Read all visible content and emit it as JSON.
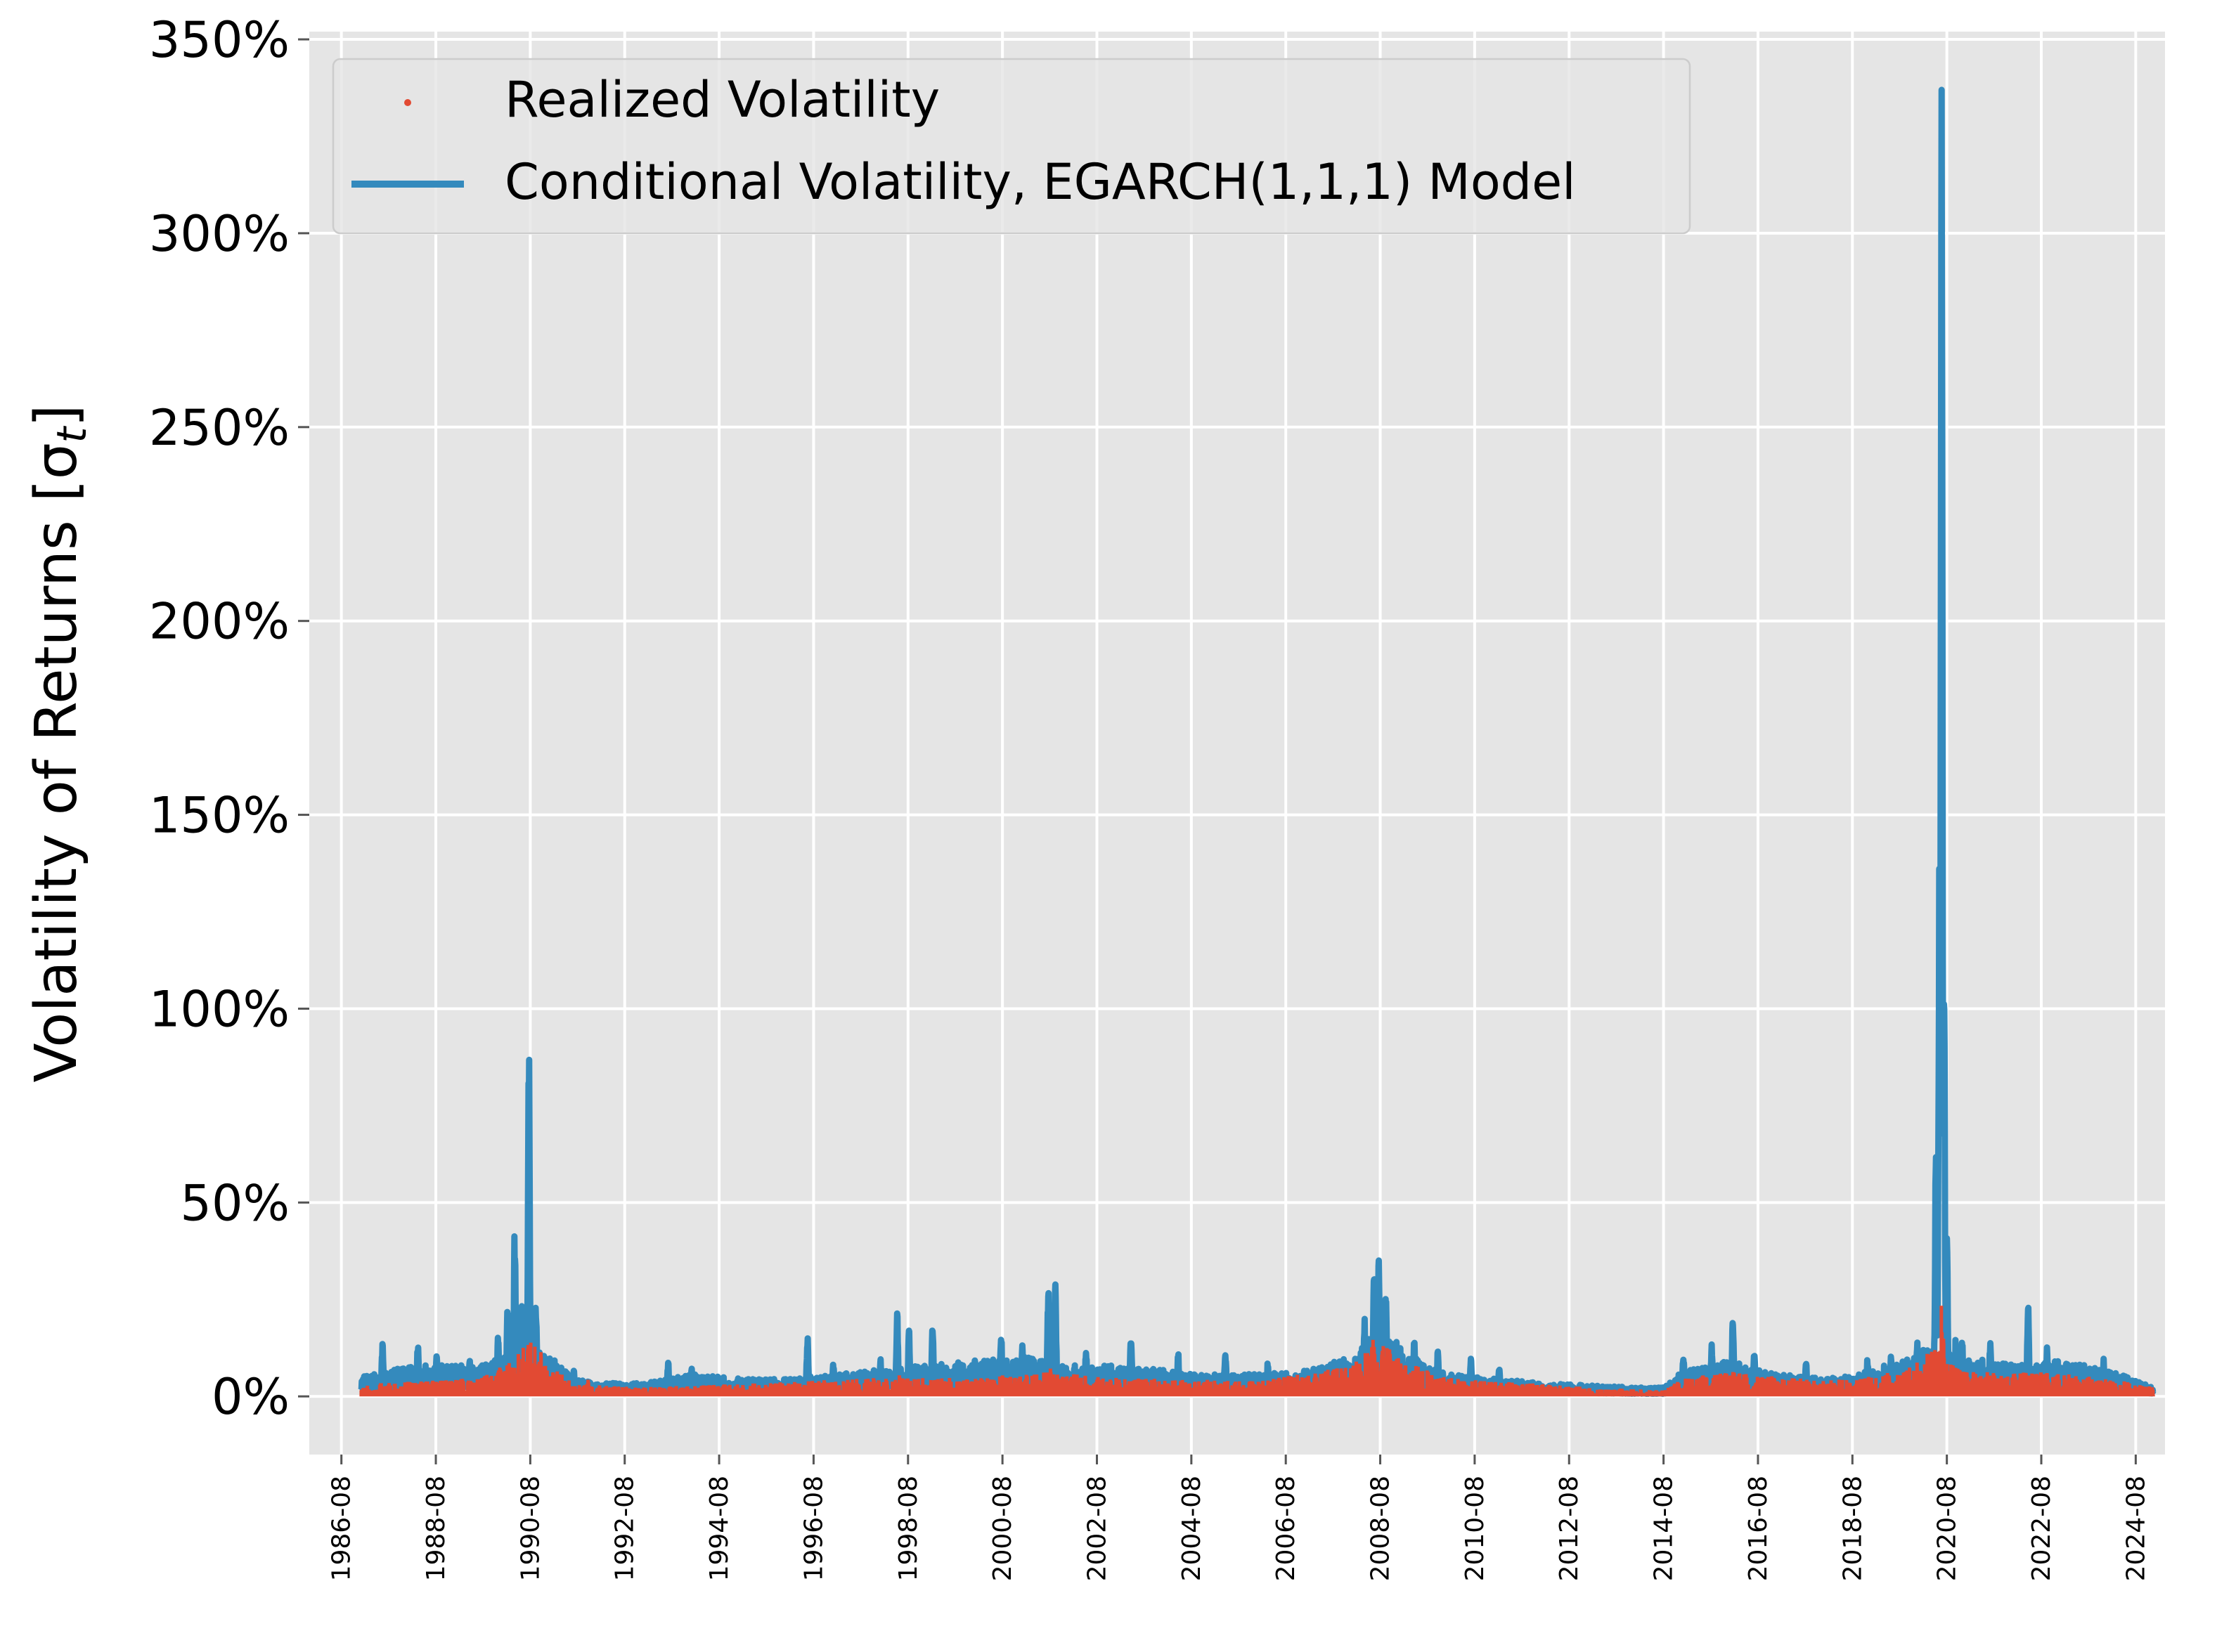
{
  "chart_data": {
    "type": "line",
    "title": "",
    "xlabel": "",
    "ylabel": "Volatility of Returns [σ",
    "ylabel_subscript": "t",
    "ylabel_close": "]",
    "ylim": [
      -15,
      352
    ],
    "xlim": [
      1985.9,
      2025.2
    ],
    "y_ticks": [
      0,
      50,
      100,
      150,
      200,
      250,
      300,
      350
    ],
    "y_tick_labels": [
      "0%",
      "50%",
      "100%",
      "150%",
      "200%",
      "250%",
      "300%",
      "350%"
    ],
    "x_ticks": [
      1986.58,
      1988.58,
      1990.58,
      1992.58,
      1994.58,
      1996.58,
      1998.58,
      2000.58,
      2002.58,
      2004.58,
      2006.58,
      2008.58,
      2010.58,
      2012.58,
      2014.58,
      2016.58,
      2018.58,
      2020.58,
      2022.58,
      2024.58
    ],
    "x_tick_labels": [
      "1986-08",
      "1988-08",
      "1990-08",
      "1992-08",
      "1994-08",
      "1996-08",
      "1998-08",
      "2000-08",
      "2002-08",
      "2004-08",
      "2006-08",
      "2008-08",
      "2010-08",
      "2012-08",
      "2014-08",
      "2016-08",
      "2018-08",
      "2020-08",
      "2022-08",
      "2024-08"
    ],
    "grid": true,
    "legend_position": "top-left",
    "legend": [
      "Realized Volatility",
      "Conditional Volatility, EGARCH(1,1,1) Model"
    ],
    "colors": {
      "background": "#e5e5e5",
      "grid": "#ffffff",
      "realized": "#e24a33",
      "conditional": "#348abd",
      "text": "#000000"
    },
    "series": [
      {
        "name": "Conditional Volatility, EGARCH(1,1,1) Model",
        "style": "line",
        "x_start": 1987.0,
        "x_end": 2024.95,
        "base_envelope": [
          [
            1987.0,
            5
          ],
          [
            1987.4,
            5
          ],
          [
            1988.0,
            7
          ],
          [
            1989.0,
            7
          ],
          [
            1989.5,
            7
          ],
          [
            1990.0,
            9
          ],
          [
            1990.5,
            14
          ],
          [
            1991.0,
            9
          ],
          [
            1991.5,
            4
          ],
          [
            1992.0,
            3
          ],
          [
            1993.0,
            3
          ],
          [
            1994.0,
            5
          ],
          [
            1995.0,
            4
          ],
          [
            1996.0,
            4
          ],
          [
            1997.0,
            5
          ],
          [
            1998.0,
            6
          ],
          [
            1999.0,
            7
          ],
          [
            2000.0,
            8
          ],
          [
            2001.0,
            9
          ],
          [
            2002.0,
            7
          ],
          [
            2003.0,
            7
          ],
          [
            2004.0,
            6
          ],
          [
            2005.0,
            5
          ],
          [
            2006.0,
            5
          ],
          [
            2007.0,
            6
          ],
          [
            2008.0,
            9
          ],
          [
            2008.6,
            16
          ],
          [
            2009.0,
            12
          ],
          [
            2009.5,
            7
          ],
          [
            2010.0,
            5
          ],
          [
            2011.0,
            4
          ],
          [
            2012.0,
            3
          ],
          [
            2013.0,
            2.5
          ],
          [
            2014.0,
            2
          ],
          [
            2014.6,
            2
          ],
          [
            2015.0,
            6
          ],
          [
            2016.0,
            8
          ],
          [
            2017.0,
            5
          ],
          [
            2018.0,
            4
          ],
          [
            2019.0,
            6
          ],
          [
            2020.0,
            10
          ],
          [
            2020.7,
            14
          ],
          [
            2021.0,
            9
          ],
          [
            2022.0,
            7
          ],
          [
            2023.0,
            8
          ],
          [
            2024.0,
            6
          ],
          [
            2024.95,
            2
          ]
        ],
        "spikes": [
          [
            1987.45,
            14
          ],
          [
            1988.2,
            15
          ],
          [
            1988.6,
            12
          ],
          [
            1989.3,
            10
          ],
          [
            1989.9,
            18
          ],
          [
            1990.1,
            24
          ],
          [
            1990.25,
            44
          ],
          [
            1990.4,
            30
          ],
          [
            1990.55,
            97
          ],
          [
            1990.7,
            25
          ],
          [
            1991.1,
            8
          ],
          [
            1991.5,
            7
          ],
          [
            1993.5,
            9
          ],
          [
            1994.0,
            8
          ],
          [
            1996.45,
            16
          ],
          [
            1997.0,
            9
          ],
          [
            1998.0,
            10
          ],
          [
            1998.35,
            22
          ],
          [
            1998.6,
            18
          ],
          [
            1999.1,
            20
          ],
          [
            2000.0,
            10
          ],
          [
            2000.55,
            18
          ],
          [
            2001.0,
            14
          ],
          [
            2001.55,
            30
          ],
          [
            2001.7,
            31
          ],
          [
            2002.35,
            13
          ],
          [
            2003.3,
            17
          ],
          [
            2004.3,
            12
          ],
          [
            2005.3,
            13
          ],
          [
            2006.2,
            9
          ],
          [
            2008.25,
            20
          ],
          [
            2008.45,
            37
          ],
          [
            2008.55,
            36
          ],
          [
            2008.7,
            30
          ],
          [
            2009.3,
            15
          ],
          [
            2009.8,
            12
          ],
          [
            2010.5,
            10
          ],
          [
            2011.1,
            8
          ],
          [
            2015.0,
            11
          ],
          [
            2015.6,
            14
          ],
          [
            2016.05,
            22
          ],
          [
            2016.5,
            13
          ],
          [
            2017.6,
            9
          ],
          [
            2018.9,
            10
          ],
          [
            2019.4,
            12
          ],
          [
            2019.95,
            15
          ],
          [
            2020.35,
            72
          ],
          [
            2020.42,
            140
          ],
          [
            2020.47,
            339
          ],
          [
            2020.52,
            110
          ],
          [
            2020.58,
            45
          ],
          [
            2020.9,
            17
          ],
          [
            2021.5,
            15
          ],
          [
            2022.3,
            26
          ],
          [
            2022.7,
            13
          ],
          [
            2023.4,
            9
          ],
          [
            2023.9,
            10
          ],
          [
            2024.5,
            5
          ]
        ]
      },
      {
        "name": "Realized Volatility",
        "style": "scatter",
        "x_start": 1987.0,
        "x_end": 2024.95,
        "base_envelope": [
          [
            1987.0,
            2
          ],
          [
            1989.5,
            3
          ],
          [
            1990.2,
            6
          ],
          [
            1990.6,
            10
          ],
          [
            1991.0,
            5
          ],
          [
            1991.5,
            2
          ],
          [
            1993.0,
            1.5
          ],
          [
            1995.0,
            2
          ],
          [
            1998.0,
            3
          ],
          [
            2000.0,
            3
          ],
          [
            2001.5,
            4
          ],
          [
            2003.0,
            3
          ],
          [
            2006.0,
            2.5
          ],
          [
            2008.0,
            5
          ],
          [
            2008.5,
            10
          ],
          [
            2009.0,
            6
          ],
          [
            2010.0,
            3
          ],
          [
            2013.0,
            1.5
          ],
          [
            2014.6,
            1
          ],
          [
            2015.0,
            3
          ],
          [
            2016.0,
            4
          ],
          [
            2018.0,
            2.5
          ],
          [
            2019.5,
            4
          ],
          [
            2020.4,
            8
          ],
          [
            2021.0,
            4
          ],
          [
            2022.5,
            4
          ],
          [
            2024.0,
            3
          ],
          [
            2024.95,
            1.5
          ]
        ],
        "spikes": [
          [
            1990.25,
            12
          ],
          [
            1990.5,
            9
          ],
          [
            1991.8,
            5
          ],
          [
            1998.4,
            6
          ],
          [
            2001.6,
            8
          ],
          [
            2007.2,
            6
          ],
          [
            2008.4,
            12
          ],
          [
            2008.6,
            11
          ],
          [
            2015.7,
            6
          ],
          [
            2016.1,
            7
          ],
          [
            2020.4,
            15
          ],
          [
            2020.46,
            25
          ],
          [
            2020.5,
            19
          ],
          [
            2022.3,
            6
          ]
        ]
      }
    ]
  }
}
